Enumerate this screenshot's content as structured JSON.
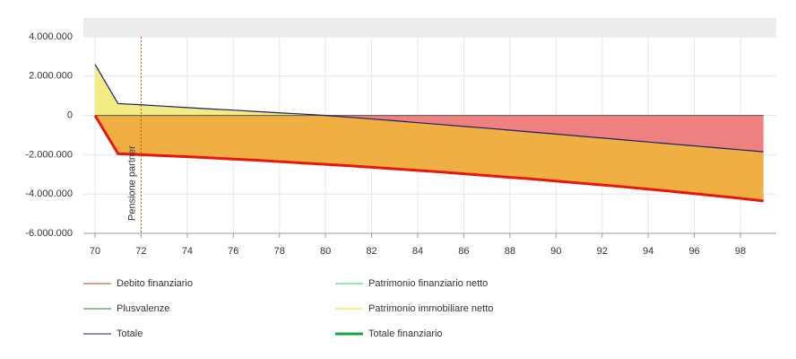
{
  "chart_data": {
    "type": "area-line",
    "x": [
      70,
      71,
      72,
      73,
      74,
      75,
      76,
      77,
      78,
      79,
      80,
      81,
      82,
      83,
      84,
      85,
      86,
      87,
      88,
      89,
      90,
      91,
      92,
      93,
      94,
      95,
      96,
      97,
      98,
      99
    ],
    "xlim": [
      69.5,
      99.5
    ],
    "xticks": [
      70,
      72,
      74,
      76,
      78,
      80,
      82,
      84,
      86,
      88,
      90,
      92,
      94,
      96,
      98
    ],
    "ylim": [
      -6000000,
      4000000
    ],
    "yticks": [
      {
        "value": -6000000,
        "label": "-6.000.000"
      },
      {
        "value": -4000000,
        "label": "-4.000.000"
      },
      {
        "value": -2000000,
        "label": "-2.000.000"
      },
      0,
      {
        "value": 2000000,
        "label": "2.000.000"
      },
      {
        "value": 4000000,
        "label": "4.000.000"
      }
    ],
    "grid": true,
    "series": [
      {
        "name": "Debito finanziario",
        "color": "#c0392b"
      },
      {
        "name": "Patrimonio finanziario netto",
        "color": "#2ecc71"
      },
      {
        "name": "Plusvalenze",
        "color": "#1e7b34"
      },
      {
        "name": "Patrimonio immobiliare netto",
        "color": "#f1e10a"
      },
      {
        "name": "Totale",
        "color": "#1a1f6b",
        "values": [
          2600000,
          600000,
          540000,
          470000,
          400000,
          330000,
          270000,
          200000,
          130000,
          70000,
          0,
          -90000,
          -180000,
          -270000,
          -370000,
          -460000,
          -560000,
          -650000,
          -750000,
          -850000,
          -950000,
          -1050000,
          -1150000,
          -1250000,
          -1350000,
          -1450000,
          -1550000,
          -1650000,
          -1750000,
          -1850000
        ]
      },
      {
        "name": "Totale finanziario",
        "color": "#16a34a",
        "line_color": "#e8160c",
        "values": [
          0,
          -1950000,
          -2000000,
          -2050000,
          -2100000,
          -2160000,
          -2220000,
          -2280000,
          -2350000,
          -2420000,
          -2490000,
          -2560000,
          -2640000,
          -2720000,
          -2800000,
          -2880000,
          -2970000,
          -3060000,
          -3150000,
          -3240000,
          -3340000,
          -3440000,
          -3540000,
          -3640000,
          -3750000,
          -3860000,
          -3980000,
          -4100000,
          -4220000,
          -4350000
        ]
      }
    ],
    "fills": {
      "positive": "#f3ec85",
      "negative": "#ef8080",
      "financial": "#efaf43"
    },
    "annotation": {
      "text": "Pensione partner",
      "x": 72
    }
  }
}
